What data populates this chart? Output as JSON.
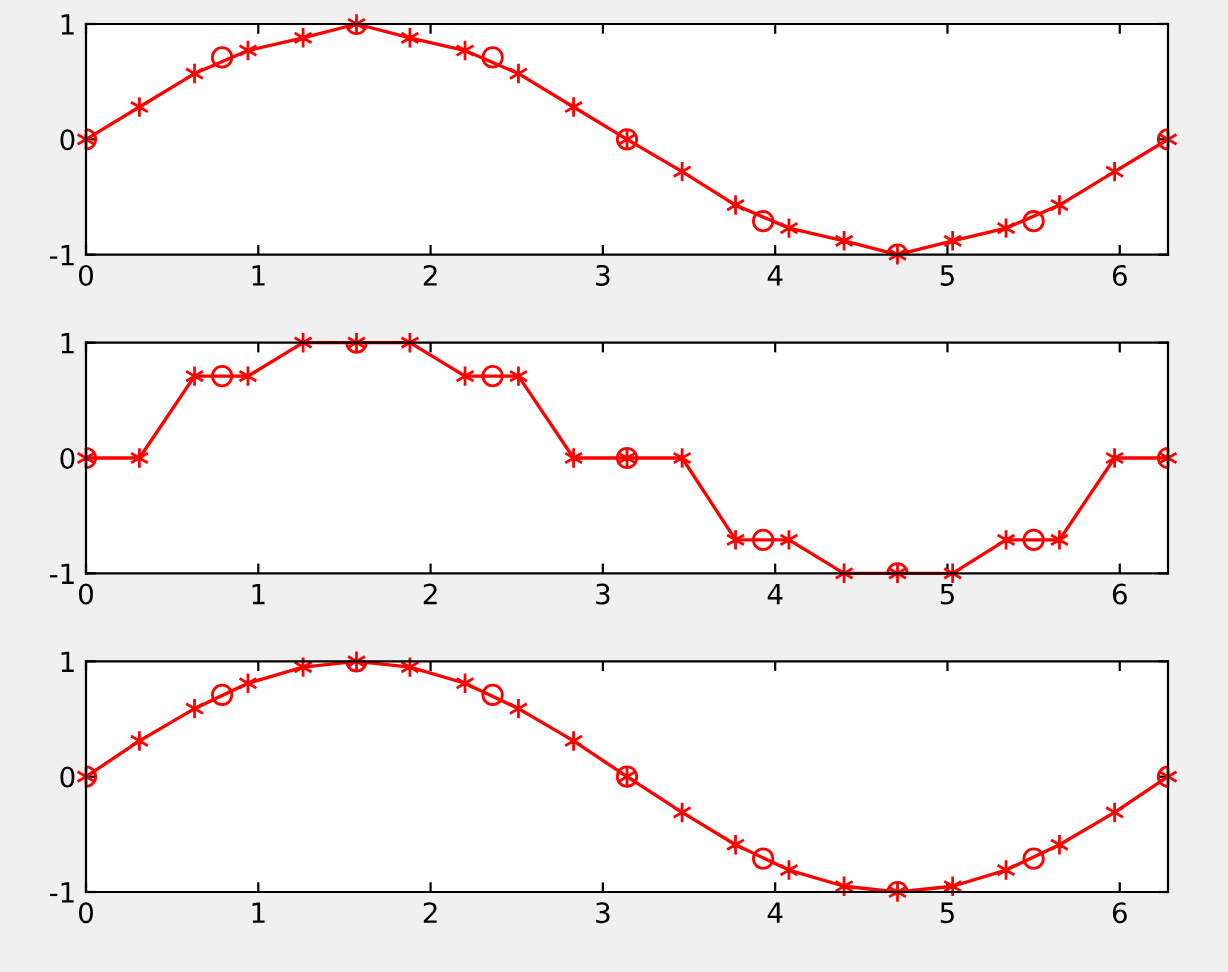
{
  "chart_data": [
    {
      "type": "line",
      "xlim": [
        0,
        6.28
      ],
      "ylim": [
        -1,
        1
      ],
      "xticks": [
        0,
        1,
        2,
        3,
        4,
        5,
        6
      ],
      "yticks": [
        -1,
        0,
        1
      ],
      "grid": false,
      "legend": false,
      "series": [
        {
          "type": "scatter",
          "marker": "circle",
          "color": "#ff0000",
          "x": [
            0,
            0.79,
            1.57,
            2.36,
            3.14,
            3.93,
            4.71,
            5.5,
            6.28
          ],
          "values": [
            0,
            0.71,
            1,
            0.71,
            0,
            -0.71,
            -1,
            -0.71,
            0
          ]
        },
        {
          "marker": "cross",
          "line_style": "solid",
          "color": "#ff0000",
          "x": [
            0,
            0.31,
            0.63,
            0.94,
            1.26,
            1.57,
            1.88,
            2.2,
            2.51,
            2.83,
            3.14,
            3.46,
            3.77,
            4.08,
            4.4,
            4.71,
            5.03,
            5.34,
            5.65,
            5.97,
            6.28
          ],
          "values": [
            0,
            0.28,
            0.57,
            0.77,
            0.88,
            1,
            0.88,
            0.77,
            0.57,
            0.28,
            0,
            -0.28,
            -0.57,
            -0.77,
            -0.88,
            -1,
            -0.88,
            -0.77,
            -0.57,
            -0.28,
            0
          ]
        }
      ]
    },
    {
      "type": "line",
      "xlim": [
        0,
        6.28
      ],
      "ylim": [
        -1,
        1
      ],
      "xticks": [
        0,
        1,
        2,
        3,
        4,
        5,
        6
      ],
      "yticks": [
        -1,
        0,
        1
      ],
      "grid": false,
      "legend": false,
      "series": [
        {
          "type": "scatter",
          "marker": "circle",
          "color": "#ff0000",
          "x": [
            0,
            0.79,
            1.57,
            2.36,
            3.14,
            3.93,
            4.71,
            5.5,
            6.28
          ],
          "values": [
            0,
            0.71,
            1,
            0.71,
            0,
            -0.71,
            -1,
            -0.71,
            0
          ]
        },
        {
          "marker": "cross",
          "line_style": "solid",
          "color": "#ff0000",
          "x": [
            0,
            0.31,
            0.63,
            0.94,
            1.26,
            1.57,
            1.88,
            2.2,
            2.51,
            2.83,
            3.14,
            3.46,
            3.77,
            4.08,
            4.4,
            4.71,
            5.03,
            5.34,
            5.65,
            5.97,
            6.28
          ],
          "values": [
            0,
            0,
            0.71,
            0.71,
            1,
            1,
            1,
            0.71,
            0.71,
            0,
            0,
            0,
            -0.71,
            -0.71,
            -1,
            -1,
            -1,
            -0.71,
            -0.71,
            0,
            0
          ]
        }
      ]
    },
    {
      "type": "line",
      "xlim": [
        0,
        6.28
      ],
      "ylim": [
        -1,
        1
      ],
      "xticks": [
        0,
        1,
        2,
        3,
        4,
        5,
        6
      ],
      "yticks": [
        -1,
        0,
        1
      ],
      "grid": false,
      "legend": false,
      "series": [
        {
          "type": "scatter",
          "marker": "circle",
          "color": "#ff0000",
          "x": [
            0,
            0.79,
            1.57,
            2.36,
            3.14,
            3.93,
            4.71,
            5.5,
            6.28
          ],
          "values": [
            0,
            0.71,
            1,
            0.71,
            0,
            -0.71,
            -1,
            -0.71,
            0
          ]
        },
        {
          "marker": "cross",
          "line_style": "solid",
          "color": "#ff0000",
          "x": [
            0,
            0.31,
            0.63,
            0.94,
            1.26,
            1.57,
            1.88,
            2.2,
            2.51,
            2.83,
            3.14,
            3.46,
            3.77,
            4.08,
            4.4,
            4.71,
            5.03,
            5.34,
            5.65,
            5.97,
            6.28
          ],
          "values": [
            0,
            0.31,
            0.59,
            0.81,
            0.95,
            1,
            0.95,
            0.81,
            0.59,
            0.31,
            0,
            -0.31,
            -0.59,
            -0.81,
            -0.95,
            -1,
            -0.95,
            -0.81,
            -0.59,
            -0.31,
            0
          ]
        }
      ]
    }
  ]
}
